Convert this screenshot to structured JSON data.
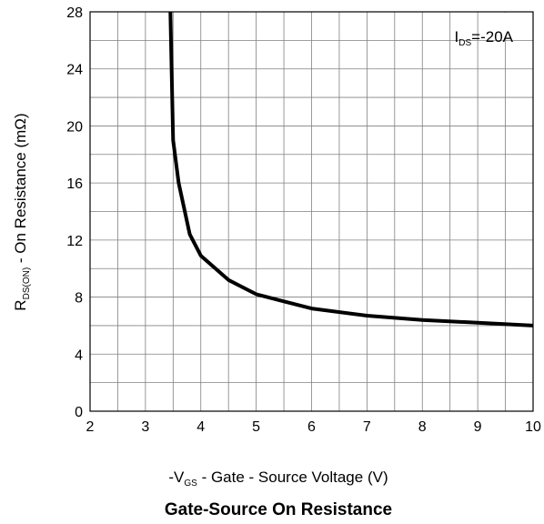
{
  "chart_data": {
    "type": "line",
    "title": "Gate-Source On Resistance",
    "xlabel": {
      "prefix": "-V",
      "sub": "GS",
      "rest": " - Gate - Source Voltage (V)"
    },
    "ylabel": {
      "prefix": "R",
      "sub": "DS(ON)",
      "rest": " - On Resistance (mΩ)"
    },
    "annotation": {
      "prefix": "I",
      "sub": "DS",
      "rest": "=-20A"
    },
    "xlim": [
      2,
      10
    ],
    "ylim": [
      0,
      28
    ],
    "x_ticks": [
      "2",
      "3",
      "4",
      "5",
      "6",
      "7",
      "8",
      "9",
      "10"
    ],
    "y_ticks": [
      "0",
      "4",
      "8",
      "12",
      "16",
      "20",
      "24",
      "28"
    ],
    "grid": true,
    "series": [
      {
        "x": [
          3.45,
          3.5,
          3.6,
          3.8,
          4.0,
          4.5,
          5.0,
          5.5,
          6.0,
          7.0,
          8.0,
          9.0,
          10.0
        ],
        "y": [
          28.0,
          19.0,
          16.0,
          12.4,
          10.9,
          9.2,
          8.2,
          7.7,
          7.2,
          6.7,
          6.4,
          6.2,
          6.0
        ]
      }
    ],
    "colors": {
      "line": "#000000",
      "grid": "#808080",
      "frame": "#000000"
    }
  }
}
